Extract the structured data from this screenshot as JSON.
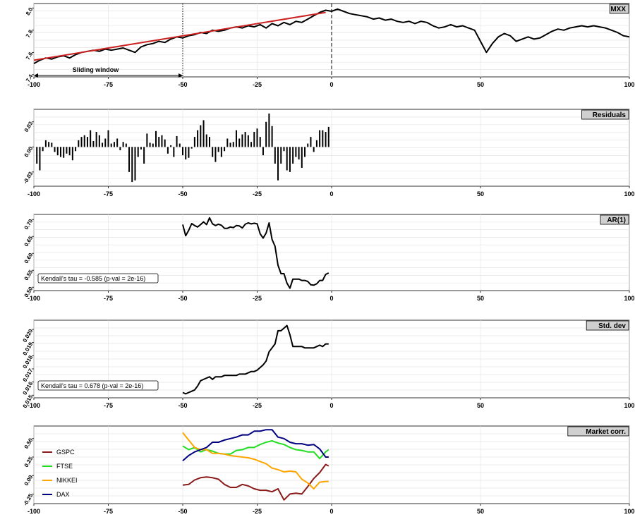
{
  "chart_data": [
    {
      "type": "line",
      "title": "MXX",
      "xlim": [
        -100,
        100
      ],
      "ylim": [
        7.38,
        8.04
      ],
      "xticks": [
        -100,
        -75,
        -50,
        -25,
        0,
        50,
        100
      ],
      "yticks": [
        7.4,
        7.6,
        7.8,
        8.0
      ],
      "ytick_labels": [
        "7.4",
        "7.6",
        "7.8",
        "8.0"
      ],
      "series": [
        {
          "color": "#000000",
          "x": [
            -100,
            -98,
            -96,
            -94,
            -92,
            -90,
            -88,
            -86,
            -84,
            -82,
            -80,
            -78,
            -76,
            -74,
            -72,
            -70,
            -68,
            -66,
            -64,
            -62,
            -60,
            -58,
            -56,
            -54,
            -52,
            -50,
            -48,
            -46,
            -44,
            -42,
            -40,
            -38,
            -36,
            -34,
            -32,
            -30,
            -28,
            -26,
            -24,
            -22,
            -20,
            -18,
            -16,
            -14,
            -12,
            -10,
            -8,
            -6,
            -4,
            -2,
            0,
            2,
            4,
            6,
            8,
            10,
            12,
            14,
            16,
            18,
            20,
            22,
            24,
            26,
            28,
            30,
            32,
            34,
            36,
            38,
            40,
            42,
            44,
            46,
            48,
            50,
            52,
            54,
            56,
            58,
            60,
            62,
            64,
            66,
            68,
            70,
            72,
            74,
            76,
            78,
            80,
            82,
            84,
            86,
            88,
            90,
            92,
            94,
            96,
            98,
            100
          ],
          "y": [
            7.5,
            7.53,
            7.55,
            7.54,
            7.56,
            7.57,
            7.55,
            7.58,
            7.6,
            7.61,
            7.62,
            7.61,
            7.63,
            7.62,
            7.63,
            7.64,
            7.62,
            7.6,
            7.65,
            7.67,
            7.68,
            7.7,
            7.69,
            7.72,
            7.74,
            7.73,
            7.75,
            7.76,
            7.78,
            7.77,
            7.8,
            7.79,
            7.8,
            7.82,
            7.83,
            7.82,
            7.84,
            7.83,
            7.85,
            7.82,
            7.86,
            7.84,
            7.87,
            7.85,
            7.88,
            7.87,
            7.9,
            7.93,
            7.96,
            7.98,
            7.97,
            7.99,
            7.97,
            7.95,
            7.94,
            7.93,
            7.92,
            7.9,
            7.91,
            7.89,
            7.9,
            7.88,
            7.87,
            7.88,
            7.86,
            7.88,
            7.87,
            7.84,
            7.82,
            7.83,
            7.85,
            7.83,
            7.84,
            7.82,
            7.8,
            7.7,
            7.6,
            7.68,
            7.74,
            7.77,
            7.75,
            7.7,
            7.72,
            7.74,
            7.72,
            7.73,
            7.76,
            7.79,
            7.81,
            7.8,
            7.82,
            7.83,
            7.84,
            7.83,
            7.84,
            7.83,
            7.82,
            7.8,
            7.78,
            7.75,
            7.74
          ]
        },
        {
          "color": "#cc2222",
          "x": [
            -100,
            -2
          ],
          "y": [
            7.53,
            7.96
          ]
        }
      ],
      "annotations": [
        {
          "text": "Sliding window",
          "x_from": -100,
          "x_to": -50
        }
      ],
      "vlines": [
        {
          "x": -50,
          "style": "dotted"
        },
        {
          "x": 0,
          "style": "dashed"
        }
      ]
    },
    {
      "type": "bar",
      "title": "Residuals",
      "xlim": [
        -100,
        100
      ],
      "ylim": [
        -0.047,
        0.045
      ],
      "xticks": [
        -100,
        -75,
        -50,
        -25,
        0,
        50,
        100
      ],
      "yticks": [
        -0.03,
        0.0,
        0.03
      ],
      "ytick_labels": [
        "-0.03",
        "0.00",
        "0.03"
      ],
      "x": [
        -99,
        -98,
        -97,
        -96,
        -95,
        -94,
        -93,
        -92,
        -91,
        -90,
        -89,
        -88,
        -87,
        -86,
        -85,
        -84,
        -83,
        -82,
        -81,
        -80,
        -79,
        -78,
        -77,
        -76,
        -75,
        -74,
        -73,
        -72,
        -71,
        -70,
        -69,
        -68,
        -67,
        -66,
        -65,
        -64,
        -63,
        -62,
        -61,
        -60,
        -59,
        -58,
        -57,
        -56,
        -55,
        -54,
        -53,
        -52,
        -51,
        -50,
        -49,
        -48,
        -47,
        -46,
        -45,
        -44,
        -43,
        -42,
        -41,
        -40,
        -39,
        -38,
        -37,
        -36,
        -35,
        -34,
        -33,
        -32,
        -31,
        -30,
        -29,
        -28,
        -27,
        -26,
        -25,
        -24,
        -23,
        -22,
        -21,
        -20,
        -19,
        -18,
        -17,
        -16,
        -15,
        -14,
        -13,
        -12,
        -11,
        -10,
        -9,
        -8,
        -7,
        -6,
        -5,
        -4,
        -3,
        -2,
        -1
      ],
      "values": [
        -0.02,
        -0.028,
        -0.005,
        0.008,
        0.006,
        0.005,
        -0.006,
        -0.01,
        -0.012,
        -0.013,
        -0.008,
        -0.01,
        -0.016,
        -0.005,
        0.008,
        0.012,
        0.014,
        0.012,
        0.02,
        0.007,
        0.018,
        0.014,
        0.005,
        0.01,
        0.02,
        0.004,
        0.006,
        0.01,
        -0.004,
        0.006,
        0.004,
        -0.03,
        -0.042,
        -0.04,
        -0.012,
        -0.003,
        -0.02,
        0.016,
        0.005,
        0.004,
        0.019,
        0.012,
        0.014,
        0.009,
        -0.008,
        0.002,
        -0.012,
        0.013,
        0.004,
        -0.01,
        -0.015,
        -0.013,
        -0.002,
        0.012,
        0.02,
        0.026,
        0.032,
        0.015,
        0.012,
        -0.012,
        -0.018,
        -0.006,
        -0.012,
        -0.005,
        0.01,
        0.005,
        0.006,
        0.02,
        0.01,
        0.015,
        0.018,
        0.014,
        0.006,
        0.018,
        0.022,
        0.012,
        -0.01,
        0.03,
        0.04,
        0.025,
        -0.02,
        -0.04,
        -0.02,
        -0.005,
        -0.028,
        -0.03,
        -0.02,
        -0.012,
        -0.015,
        -0.025,
        -0.012,
        0.004,
        0.012,
        -0.006,
        0.008,
        0.02,
        0.02,
        0.018,
        0.024
      ]
    },
    {
      "type": "line",
      "title": "AR(1)",
      "xlim": [
        -100,
        100
      ],
      "ylim": [
        0.49,
        0.715
      ],
      "xticks": [
        -100,
        -75,
        -50,
        -25,
        0,
        50,
        100
      ],
      "yticks": [
        0.5,
        0.55,
        0.6,
        0.65,
        0.7
      ],
      "ytick_labels": [
        "0.50",
        "0.55",
        "0.60",
        "0.65",
        "0.70"
      ],
      "annotation": "Kendall's tau = -0.585 (p-val = 2e-16)",
      "series": [
        {
          "color": "#000000",
          "x": [
            -50,
            -49,
            -48,
            -47,
            -46,
            -45,
            -44,
            -43,
            -42,
            -41,
            -40,
            -39,
            -38,
            -37,
            -36,
            -35,
            -34,
            -33,
            -32,
            -31,
            -30,
            -29,
            -28,
            -27,
            -26,
            -25,
            -24,
            -23,
            -22,
            -21,
            -20,
            -19,
            -18,
            -17,
            -16,
            -15,
            -14,
            -13,
            -12,
            -11,
            -10,
            -9,
            -8,
            -7,
            -6,
            -5,
            -4,
            -3,
            -2,
            -1
          ],
          "y": [
            0.685,
            0.652,
            0.668,
            0.688,
            0.682,
            0.678,
            0.685,
            0.693,
            0.685,
            0.705,
            0.687,
            0.682,
            0.686,
            0.683,
            0.674,
            0.674,
            0.678,
            0.676,
            0.682,
            0.681,
            0.675,
            0.686,
            0.69,
            0.687,
            0.689,
            0.687,
            0.658,
            0.645,
            0.66,
            0.69,
            0.641,
            0.621,
            0.565,
            0.54,
            0.54,
            0.512,
            0.497,
            0.524,
            0.524,
            0.524,
            0.52,
            0.52,
            0.517,
            0.507,
            0.506,
            0.51,
            0.52,
            0.52,
            0.538,
            0.542
          ]
        }
      ]
    },
    {
      "type": "line",
      "title": "Std. dev",
      "xlim": [
        -100,
        100
      ],
      "ylim": [
        0.0148,
        0.0207
      ],
      "xticks": [
        -100,
        -75,
        -50,
        -25,
        0,
        50,
        100
      ],
      "yticks": [
        0.015,
        0.016,
        0.017,
        0.018,
        0.019,
        0.02
      ],
      "ytick_labels": [
        "0.015",
        "0.016",
        "0.017",
        "0.018",
        "0.019",
        "0.020"
      ],
      "annotation": "Kendall's tau = 0.678 (p-val = 2e-16)",
      "series": [
        {
          "color": "#000000",
          "x": [
            -50,
            -49,
            -48,
            -47,
            -46,
            -45,
            -44,
            -43,
            -42,
            -41,
            -40,
            -39,
            -38,
            -37,
            -36,
            -35,
            -34,
            -33,
            -32,
            -31,
            -30,
            -29,
            -28,
            -27,
            -26,
            -25,
            -24,
            -23,
            -22,
            -21,
            -20,
            -19,
            -18,
            -17,
            -16,
            -15,
            -14,
            -13,
            -12,
            -11,
            -10,
            -9,
            -8,
            -7,
            -6,
            -5,
            -4,
            -3,
            -2,
            -1
          ],
          "y": [
            0.0152,
            0.0151,
            0.0152,
            0.0153,
            0.0154,
            0.0157,
            0.0161,
            0.0162,
            0.0163,
            0.0164,
            0.0162,
            0.0164,
            0.0164,
            0.0164,
            0.0165,
            0.0165,
            0.0165,
            0.0165,
            0.0165,
            0.0166,
            0.0166,
            0.0166,
            0.0167,
            0.0168,
            0.0168,
            0.0169,
            0.0171,
            0.0173,
            0.0176,
            0.0183,
            0.0186,
            0.0189,
            0.0199,
            0.0199,
            0.0201,
            0.0203,
            0.0196,
            0.0187,
            0.0187,
            0.0187,
            0.0187,
            0.0186,
            0.0186,
            0.0186,
            0.0186,
            0.0187,
            0.0188,
            0.0187,
            0.0189,
            0.0189
          ]
        }
      ]
    },
    {
      "type": "line",
      "title": "Market corr.",
      "xlim": [
        -100,
        100
      ],
      "ylim": [
        -0.38,
        0.67
      ],
      "xticks": [
        -100,
        -75,
        -50,
        -25,
        0,
        50,
        100
      ],
      "yticks": [
        -0.25,
        0.0,
        0.25,
        0.5
      ],
      "ytick_labels": [
        "-0.25",
        "0.00",
        "0.25",
        "0.50"
      ],
      "legend_position": "left",
      "series": [
        {
          "name": "GSPC",
          "color": "#8b1a1a",
          "x": [
            -50,
            -48,
            -46,
            -44,
            -42,
            -40,
            -38,
            -36,
            -34,
            -32,
            -30,
            -28,
            -26,
            -24,
            -22,
            -20,
            -18,
            -16,
            -14,
            -12,
            -10,
            -8,
            -6,
            -4,
            -2,
            -1
          ],
          "y": [
            -0.13,
            -0.12,
            -0.06,
            -0.03,
            -0.02,
            -0.03,
            -0.05,
            -0.12,
            -0.16,
            -0.16,
            -0.12,
            -0.14,
            -0.18,
            -0.2,
            -0.2,
            -0.22,
            -0.18,
            -0.33,
            -0.25,
            -0.24,
            -0.25,
            -0.15,
            -0.04,
            0.04,
            0.15,
            0.13
          ]
        },
        {
          "name": "FTSE",
          "color": "#22dd22",
          "x": [
            -50,
            -48,
            -46,
            -44,
            -42,
            -40,
            -38,
            -36,
            -34,
            -32,
            -30,
            -28,
            -26,
            -24,
            -22,
            -20,
            -18,
            -16,
            -14,
            -12,
            -10,
            -8,
            -6,
            -4,
            -2,
            -1
          ],
          "y": [
            0.4,
            0.35,
            0.38,
            0.32,
            0.35,
            0.33,
            0.3,
            0.29,
            0.29,
            0.34,
            0.35,
            0.38,
            0.38,
            0.42,
            0.45,
            0.47,
            0.44,
            0.42,
            0.38,
            0.35,
            0.34,
            0.32,
            0.32,
            0.23,
            0.32,
            0.35
          ]
        },
        {
          "name": "NIKKEI",
          "color": "#ffa500",
          "x": [
            -50,
            -48,
            -46,
            -44,
            -42,
            -40,
            -38,
            -36,
            -34,
            -32,
            -30,
            -28,
            -26,
            -24,
            -22,
            -20,
            -18,
            -16,
            -14,
            -12,
            -10,
            -8,
            -6,
            -4,
            -2,
            -1
          ],
          "y": [
            0.58,
            0.48,
            0.38,
            0.35,
            0.35,
            0.3,
            0.3,
            0.29,
            0.27,
            0.26,
            0.25,
            0.24,
            0.22,
            0.19,
            0.16,
            0.1,
            0.08,
            0.05,
            0.06,
            0.05,
            -0.05,
            -0.1,
            -0.18,
            -0.09,
            -0.08,
            -0.08
          ]
        },
        {
          "name": "DAX",
          "color": "#000080",
          "x": [
            -50,
            -48,
            -46,
            -44,
            -42,
            -40,
            -38,
            -36,
            -34,
            -32,
            -30,
            -28,
            -26,
            -24,
            -22,
            -20,
            -18,
            -16,
            -14,
            -12,
            -10,
            -8,
            -6,
            -4,
            -2,
            -1
          ],
          "y": [
            0.2,
            0.27,
            0.32,
            0.35,
            0.38,
            0.45,
            0.45,
            0.48,
            0.5,
            0.52,
            0.55,
            0.55,
            0.6,
            0.6,
            0.62,
            0.62,
            0.52,
            0.5,
            0.45,
            0.43,
            0.43,
            0.41,
            0.42,
            0.36,
            0.25,
            0.25
          ]
        }
      ]
    }
  ]
}
